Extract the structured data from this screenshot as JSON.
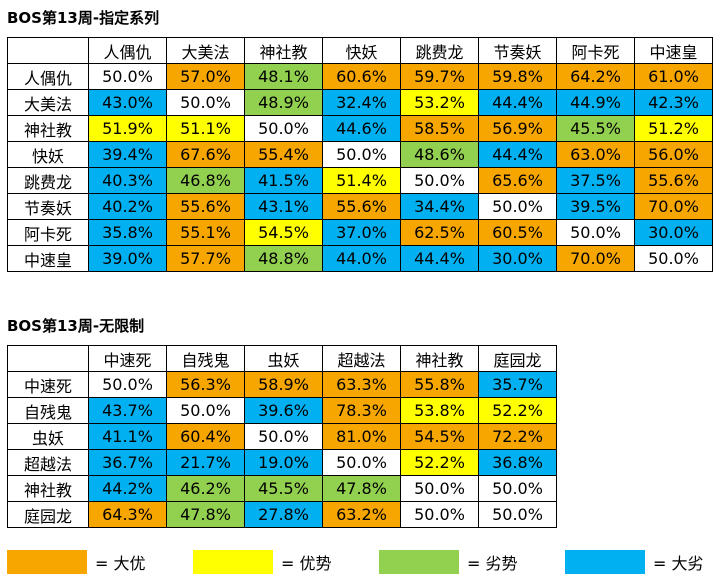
{
  "tables": [
    {
      "title": "BOS第13周-指定系列",
      "columns": [
        "人偶仇",
        "大美法",
        "神社教",
        "快妖",
        "跳费龙",
        "节奏妖",
        "阿卡死",
        "中速皇"
      ],
      "rows": [
        {
          "label": "人偶仇",
          "cells": [
            "50.0%",
            "57.0%",
            "48.1%",
            "60.6%",
            "59.7%",
            "59.8%",
            "64.2%",
            "61.0%"
          ],
          "colors": [
            "#ffffff",
            "#f7a600",
            "#92d050",
            "#f7a600",
            "#f7a600",
            "#f7a600",
            "#f7a600",
            "#f7a600"
          ]
        },
        {
          "label": "大美法",
          "cells": [
            "43.0%",
            "50.0%",
            "48.9%",
            "32.4%",
            "53.2%",
            "44.4%",
            "44.9%",
            "42.3%"
          ],
          "colors": [
            "#00b0f0",
            "#ffffff",
            "#92d050",
            "#00b0f0",
            "#ffff00",
            "#00b0f0",
            "#00b0f0",
            "#00b0f0"
          ]
        },
        {
          "label": "神社教",
          "cells": [
            "51.9%",
            "51.1%",
            "50.0%",
            "44.6%",
            "58.5%",
            "56.9%",
            "45.5%",
            "51.2%"
          ],
          "colors": [
            "#ffff00",
            "#ffff00",
            "#ffffff",
            "#00b0f0",
            "#f7a600",
            "#f7a600",
            "#92d050",
            "#ffff00"
          ]
        },
        {
          "label": "快妖",
          "cells": [
            "39.4%",
            "67.6%",
            "55.4%",
            "50.0%",
            "48.6%",
            "44.4%",
            "63.0%",
            "56.0%"
          ],
          "colors": [
            "#00b0f0",
            "#f7a600",
            "#f7a600",
            "#ffffff",
            "#92d050",
            "#00b0f0",
            "#f7a600",
            "#f7a600"
          ]
        },
        {
          "label": "跳费龙",
          "cells": [
            "40.3%",
            "46.8%",
            "41.5%",
            "51.4%",
            "50.0%",
            "65.6%",
            "37.5%",
            "55.6%"
          ],
          "colors": [
            "#00b0f0",
            "#92d050",
            "#00b0f0",
            "#ffff00",
            "#ffffff",
            "#f7a600",
            "#00b0f0",
            "#f7a600"
          ]
        },
        {
          "label": "节奏妖",
          "cells": [
            "40.2%",
            "55.6%",
            "43.1%",
            "55.6%",
            "34.4%",
            "50.0%",
            "39.5%",
            "70.0%"
          ],
          "colors": [
            "#00b0f0",
            "#f7a600",
            "#00b0f0",
            "#f7a600",
            "#00b0f0",
            "#ffffff",
            "#00b0f0",
            "#f7a600"
          ]
        },
        {
          "label": "阿卡死",
          "cells": [
            "35.8%",
            "55.1%",
            "54.5%",
            "37.0%",
            "62.5%",
            "60.5%",
            "50.0%",
            "30.0%"
          ],
          "colors": [
            "#00b0f0",
            "#f7a600",
            "#ffff00",
            "#00b0f0",
            "#f7a600",
            "#f7a600",
            "#ffffff",
            "#00b0f0"
          ]
        },
        {
          "label": "中速皇",
          "cells": [
            "39.0%",
            "57.7%",
            "48.8%",
            "44.0%",
            "44.4%",
            "30.0%",
            "70.0%",
            "50.0%"
          ],
          "colors": [
            "#00b0f0",
            "#f7a600",
            "#92d050",
            "#00b0f0",
            "#00b0f0",
            "#00b0f0",
            "#f7a600",
            "#ffffff"
          ]
        }
      ]
    },
    {
      "title": "BOS第13周-无限制",
      "columns": [
        "中速死",
        "自残鬼",
        "虫妖",
        "超越法",
        "神社教",
        "庭园龙"
      ],
      "rows": [
        {
          "label": "中速死",
          "cells": [
            "50.0%",
            "56.3%",
            "58.9%",
            "63.3%",
            "55.8%",
            "35.7%"
          ],
          "colors": [
            "#ffffff",
            "#f7a600",
            "#f7a600",
            "#f7a600",
            "#f7a600",
            "#00b0f0"
          ]
        },
        {
          "label": "自残鬼",
          "cells": [
            "43.7%",
            "50.0%",
            "39.6%",
            "78.3%",
            "53.8%",
            "52.2%"
          ],
          "colors": [
            "#00b0f0",
            "#ffffff",
            "#00b0f0",
            "#f7a600",
            "#ffff00",
            "#ffff00"
          ]
        },
        {
          "label": "虫妖",
          "cells": [
            "41.1%",
            "60.4%",
            "50.0%",
            "81.0%",
            "54.5%",
            "72.2%"
          ],
          "colors": [
            "#00b0f0",
            "#f7a600",
            "#ffffff",
            "#f7a600",
            "#f7a600",
            "#f7a600"
          ]
        },
        {
          "label": "超越法",
          "cells": [
            "36.7%",
            "21.7%",
            "19.0%",
            "50.0%",
            "52.2%",
            "36.8%"
          ],
          "colors": [
            "#00b0f0",
            "#00b0f0",
            "#00b0f0",
            "#ffffff",
            "#ffff00",
            "#00b0f0"
          ]
        },
        {
          "label": "神社教",
          "cells": [
            "44.2%",
            "46.2%",
            "45.5%",
            "47.8%",
            "50.0%",
            "50.0%"
          ],
          "colors": [
            "#00b0f0",
            "#92d050",
            "#92d050",
            "#92d050",
            "#ffffff",
            "#ffffff"
          ]
        },
        {
          "label": "庭园龙",
          "cells": [
            "64.3%",
            "47.8%",
            "27.8%",
            "63.2%",
            "50.0%",
            "50.0%"
          ],
          "colors": [
            "#f7a600",
            "#92d050",
            "#00b0f0",
            "#f7a600",
            "#ffffff",
            "#ffffff"
          ]
        }
      ]
    }
  ],
  "legend": [
    {
      "label": "= 大优",
      "color": "#f7a600"
    },
    {
      "label": "= 优势",
      "color": "#ffff00"
    },
    {
      "label": "= 劣势",
      "color": "#92d050"
    },
    {
      "label": "= 大劣",
      "color": "#00b0f0"
    }
  ]
}
